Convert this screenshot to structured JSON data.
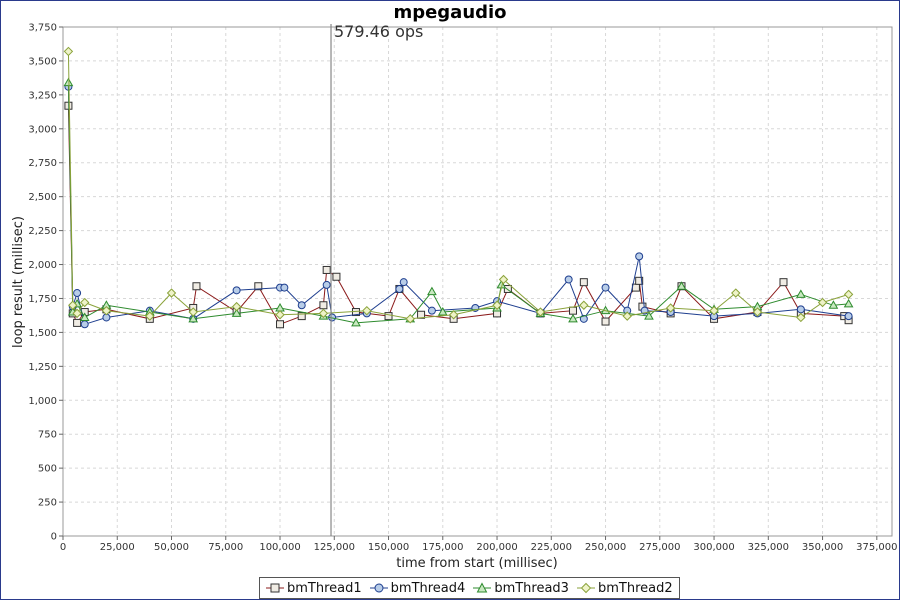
{
  "chart_data": {
    "type": "line",
    "title": "mpegaudio",
    "xlabel": "time from start (millisec)",
    "ylabel": "loop result (millisec)",
    "xlim": [
      0,
      382000
    ],
    "ylim": [
      0,
      3750
    ],
    "x_ticks": [
      0,
      25000,
      50000,
      75000,
      100000,
      125000,
      150000,
      175000,
      200000,
      225000,
      250000,
      275000,
      300000,
      325000,
      350000,
      375000
    ],
    "x_tick_labels": [
      "0",
      "25,000",
      "50,000",
      "75,000",
      "100,000",
      "125,000",
      "150,000",
      "175,000",
      "200,000",
      "225,000",
      "250,000",
      "275,000",
      "300,000",
      "325,000",
      "350,000",
      "375,000"
    ],
    "y_ticks": [
      0,
      250,
      500,
      750,
      1000,
      1250,
      1500,
      1750,
      2000,
      2250,
      2500,
      2750,
      3000,
      3250,
      3500,
      3750
    ],
    "y_tick_labels": [
      "0",
      "250",
      "500",
      "750",
      "1,000",
      "1,250",
      "1,500",
      "1,750",
      "2,000",
      "2,250",
      "2,500",
      "2,750",
      "3,000",
      "3,250",
      "3,500",
      "3,750"
    ],
    "grid": true,
    "legend_position": "bottom-center",
    "marker": {
      "x": 123500,
      "label": "579.46 ops"
    },
    "series": [
      {
        "name": "bmThread1",
        "color": "#8b1a1a",
        "marker": "square",
        "x": [
          2500,
          4500,
          6500,
          10000,
          20000,
          40000,
          60000,
          61500,
          80000,
          90000,
          100000,
          110000,
          120000,
          121500,
          126000,
          135000,
          150000,
          155000,
          165000,
          180000,
          200000,
          205000,
          220000,
          235000,
          240000,
          250000,
          264000,
          265500,
          267000,
          280000,
          285000,
          300000,
          320000,
          332000,
          340000,
          360000,
          362000
        ],
        "values": [
          3170,
          1640,
          1570,
          1650,
          1670,
          1600,
          1680,
          1840,
          1650,
          1840,
          1560,
          1620,
          1700,
          1960,
          1910,
          1650,
          1620,
          1820,
          1630,
          1600,
          1640,
          1820,
          1640,
          1660,
          1870,
          1580,
          1830,
          1880,
          1690,
          1640,
          1840,
          1600,
          1650,
          1870,
          1640,
          1620,
          1590
        ]
      },
      {
        "name": "bmThread4",
        "color": "#1f3f8f",
        "marker": "circle",
        "x": [
          2500,
          4500,
          6500,
          10000,
          20000,
          40000,
          60000,
          80000,
          100000,
          102000,
          110000,
          121500,
          124000,
          140000,
          155000,
          157000,
          170000,
          190000,
          200000,
          220000,
          233000,
          240000,
          250000,
          260000,
          265500,
          268000,
          280000,
          300000,
          320000,
          340000,
          362000
        ],
        "values": [
          3310,
          1690,
          1790,
          1560,
          1610,
          1660,
          1600,
          1810,
          1830,
          1830,
          1700,
          1850,
          1610,
          1640,
          1820,
          1870,
          1660,
          1680,
          1730,
          1640,
          1890,
          1600,
          1830,
          1660,
          2060,
          1660,
          1650,
          1620,
          1640,
          1670,
          1620
        ]
      },
      {
        "name": "bmThread3",
        "color": "#2e8b2e",
        "marker": "triangle",
        "x": [
          2500,
          4500,
          6500,
          10000,
          20000,
          40000,
          60000,
          80000,
          100000,
          120000,
          135000,
          160000,
          170000,
          175000,
          200000,
          202000,
          220000,
          235000,
          250000,
          270000,
          285000,
          300000,
          320000,
          340000,
          355000,
          362000
        ],
        "values": [
          3340,
          1650,
          1710,
          1610,
          1700,
          1650,
          1600,
          1640,
          1680,
          1620,
          1570,
          1600,
          1800,
          1650,
          1680,
          1850,
          1640,
          1600,
          1660,
          1620,
          1840,
          1670,
          1690,
          1780,
          1700,
          1710
        ]
      },
      {
        "name": "bmThread2",
        "color": "#8aa23a",
        "marker": "diamond",
        "x": [
          2500,
          4500,
          6500,
          10000,
          20000,
          40000,
          50000,
          60000,
          80000,
          100000,
          120000,
          140000,
          160000,
          180000,
          200000,
          203000,
          220000,
          240000,
          260000,
          280000,
          300000,
          310000,
          320000,
          340000,
          350000,
          362000
        ],
        "values": [
          3570,
          1700,
          1640,
          1720,
          1660,
          1620,
          1790,
          1650,
          1690,
          1630,
          1640,
          1660,
          1600,
          1630,
          1700,
          1890,
          1650,
          1700,
          1620,
          1680,
          1660,
          1790,
          1650,
          1610,
          1720,
          1780
        ]
      }
    ]
  }
}
